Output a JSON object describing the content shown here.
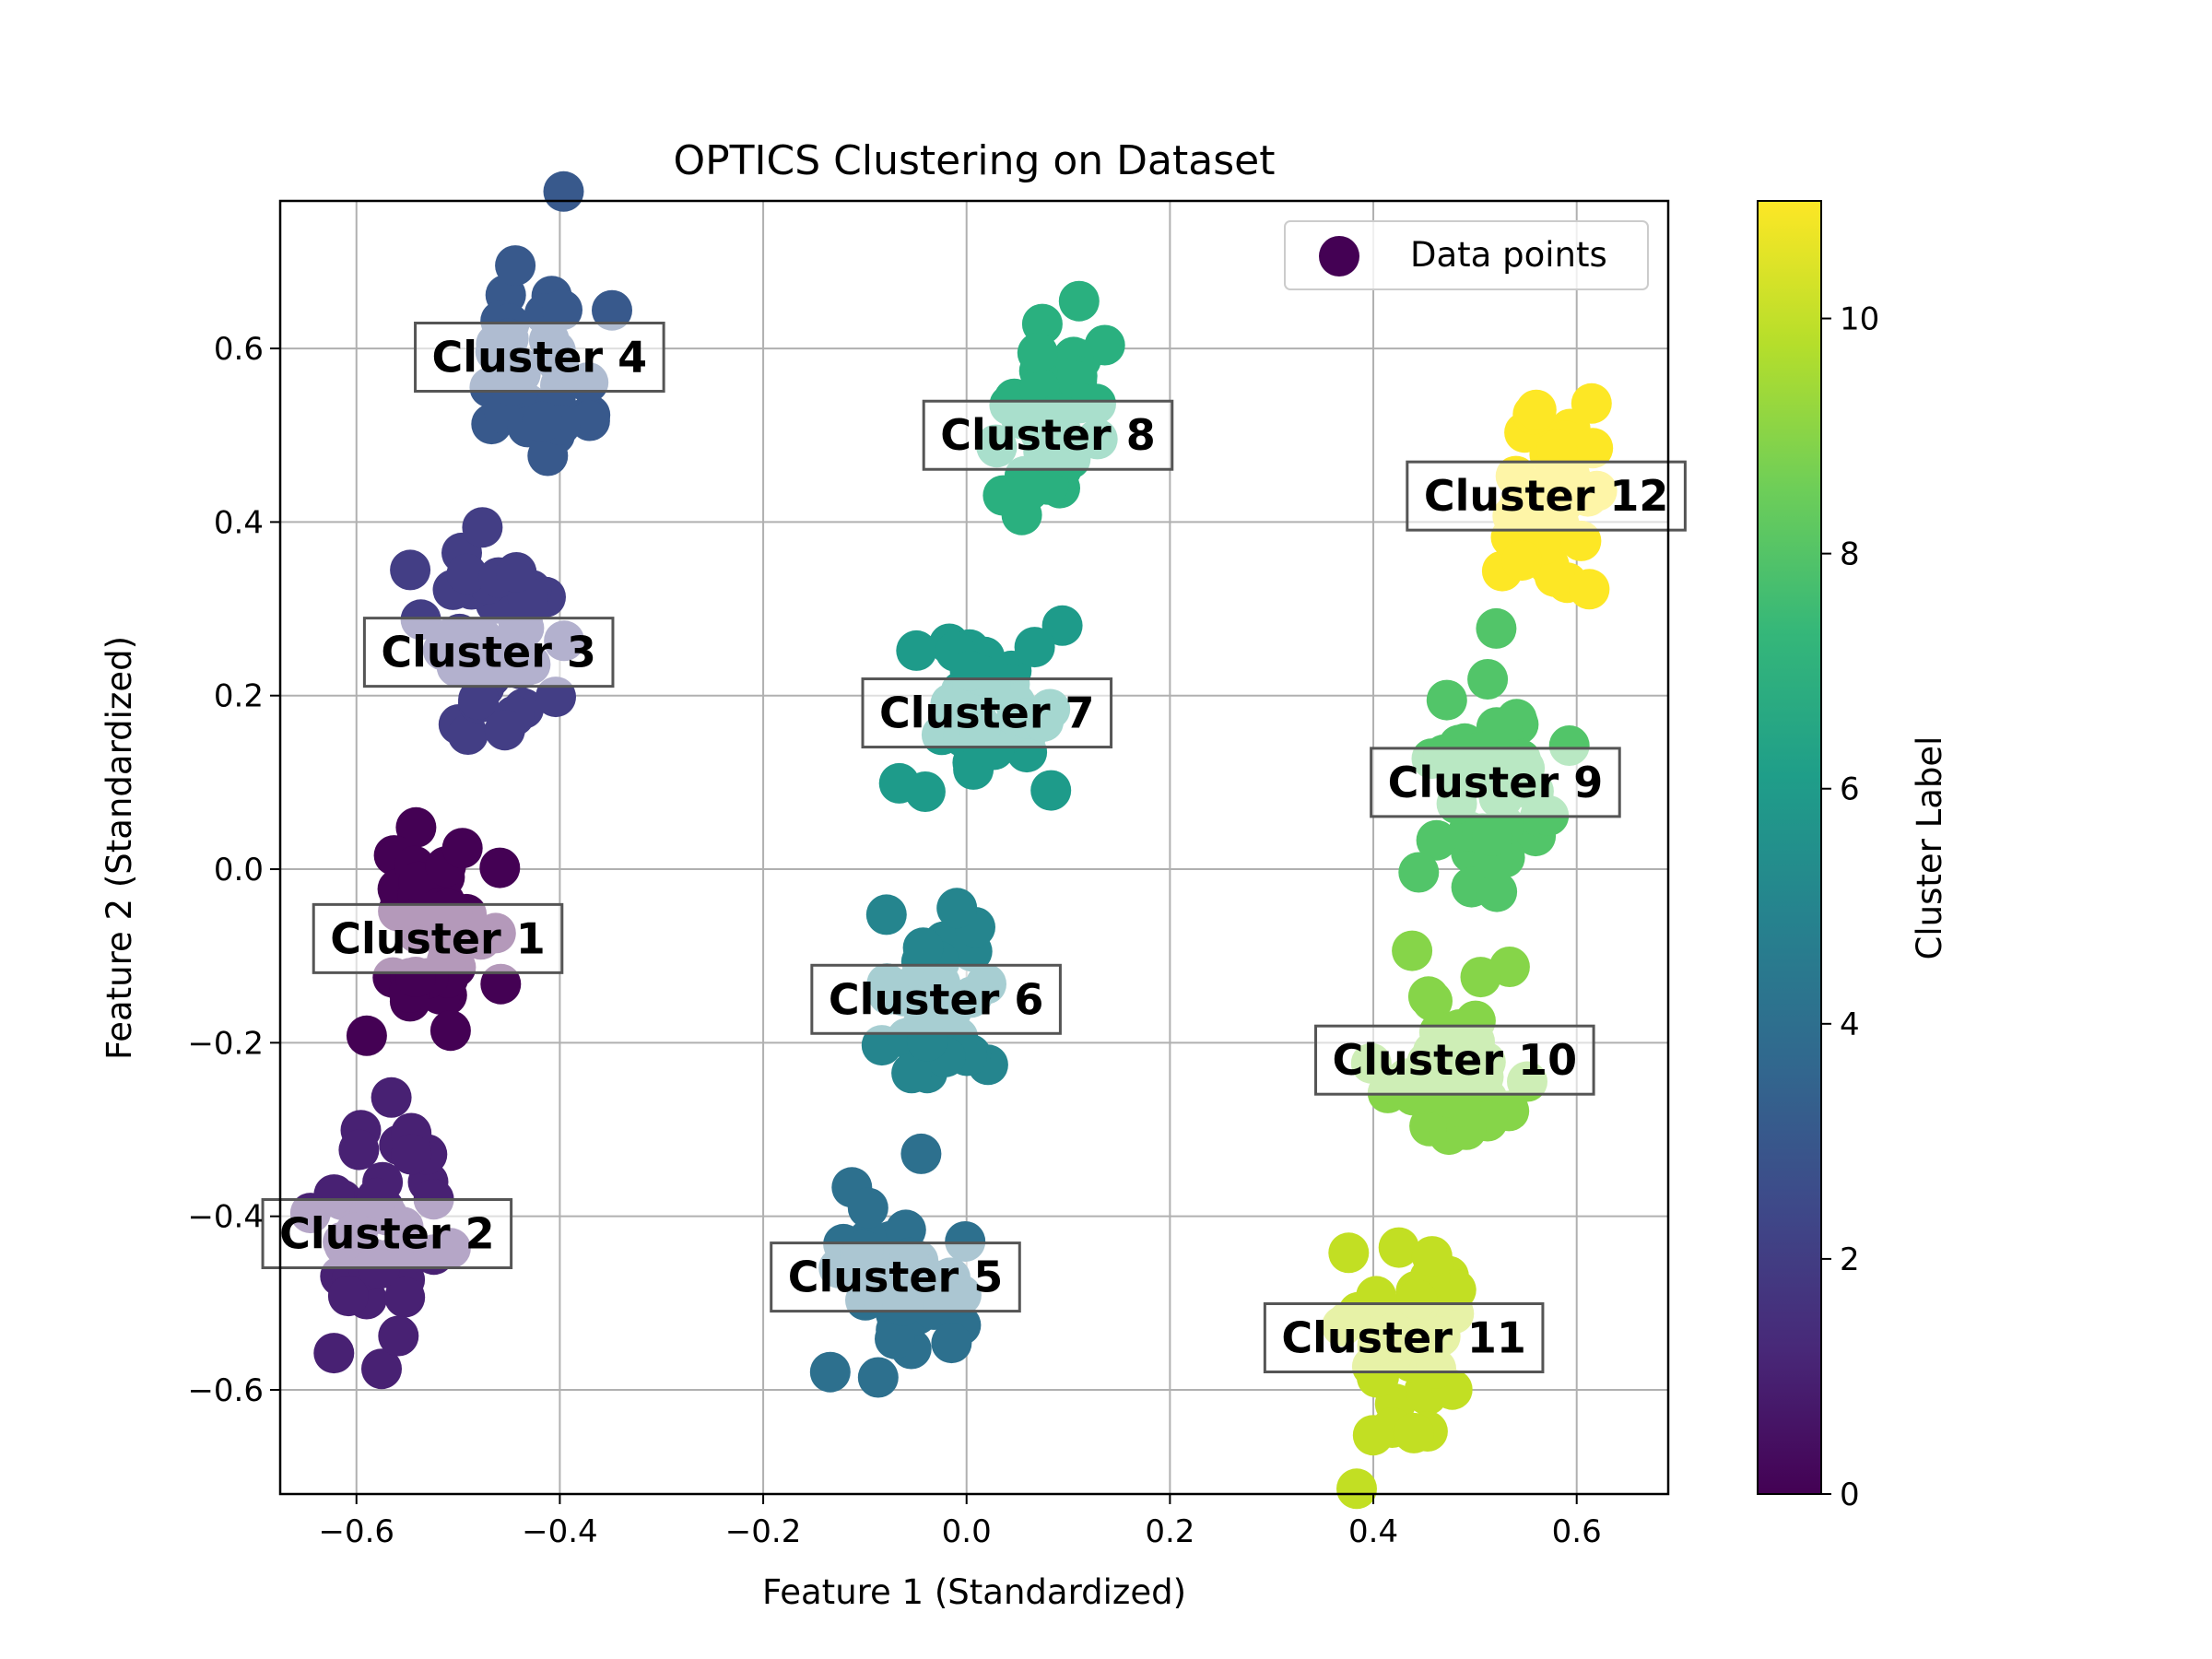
{
  "chart_data": {
    "type": "scatter",
    "title": "OPTICS Clustering on Dataset",
    "xlabel": "Feature 1 (Standardized)",
    "ylabel": "Feature 2 (Standardized)",
    "xlim": [
      -0.675,
      0.69
    ],
    "ylim": [
      -0.72,
      0.77
    ],
    "xticks": [
      -0.6,
      -0.4,
      -0.2,
      0.0,
      0.2,
      0.4,
      0.6
    ],
    "xtick_labels": [
      "−0.6",
      "−0.4",
      "−0.2",
      "0.0",
      "0.2",
      "0.4",
      "0.6"
    ],
    "yticks": [
      -0.6,
      -0.4,
      -0.2,
      0.0,
      0.2,
      0.4,
      0.6
    ],
    "ytick_labels": [
      "−0.6",
      "−0.4",
      "−0.2",
      "0.0",
      "0.2",
      "0.4",
      "0.6"
    ],
    "grid": true,
    "legend": {
      "position": "top-right",
      "entries": [
        {
          "label": "Data points",
          "color": "#440154"
        }
      ]
    },
    "colorbar": {
      "label": "Cluster Label",
      "range": [
        0,
        11
      ],
      "ticks": [
        0,
        2,
        4,
        6,
        8,
        10
      ],
      "tick_labels": [
        "0",
        "2",
        "4",
        "6",
        "8",
        "10"
      ],
      "colormap": "viridis",
      "stops": [
        "#440154",
        "#482878",
        "#3e4989",
        "#31688e",
        "#26828e",
        "#1f9e89",
        "#35b779",
        "#6ece58",
        "#b5de2b",
        "#fde725"
      ]
    },
    "clusters": [
      {
        "label": "Cluster 1",
        "cluster_id": 0,
        "center": [
          -0.52,
          -0.08
        ],
        "spread": [
          0.03,
          0.055
        ],
        "color": "#440154"
      },
      {
        "label": "Cluster 2",
        "cluster_id": 1,
        "center": [
          -0.57,
          -0.42
        ],
        "spread": [
          0.03,
          0.065
        ],
        "color": "#482173"
      },
      {
        "label": "Cluster 3",
        "cluster_id": 2,
        "center": [
          -0.47,
          0.25
        ],
        "spread": [
          0.03,
          0.06
        ],
        "color": "#433e85"
      },
      {
        "label": "Cluster 4",
        "cluster_id": 3,
        "center": [
          -0.42,
          0.59
        ],
        "spread": [
          0.03,
          0.06
        ],
        "color": "#38598c"
      },
      {
        "label": "Cluster 5",
        "cluster_id": 4,
        "center": [
          -0.07,
          -0.47
        ],
        "spread": [
          0.03,
          0.06
        ],
        "color": "#2d708e"
      },
      {
        "label": "Cluster 6",
        "cluster_id": 5,
        "center": [
          -0.03,
          -0.15
        ],
        "spread": [
          0.03,
          0.06
        ],
        "color": "#25858e"
      },
      {
        "label": "Cluster 7",
        "cluster_id": 6,
        "center": [
          0.02,
          0.18
        ],
        "spread": [
          0.03,
          0.06
        ],
        "color": "#1e9b8a"
      },
      {
        "label": "Cluster 8",
        "cluster_id": 7,
        "center": [
          0.08,
          0.5
        ],
        "spread": [
          0.03,
          0.06
        ],
        "color": "#2ab07f"
      },
      {
        "label": "Cluster 9",
        "cluster_id": 8,
        "center": [
          0.52,
          0.1
        ],
        "spread": [
          0.03,
          0.06
        ],
        "color": "#52c569"
      },
      {
        "label": "Cluster 10",
        "cluster_id": 9,
        "center": [
          0.48,
          -0.22
        ],
        "spread": [
          0.03,
          0.06
        ],
        "color": "#86d549"
      },
      {
        "label": "Cluster 11",
        "cluster_id": 10,
        "center": [
          0.43,
          -0.54
        ],
        "spread": [
          0.03,
          0.06
        ],
        "color": "#c2df23"
      },
      {
        "label": "Cluster 12",
        "cluster_id": 11,
        "center": [
          0.57,
          0.43
        ],
        "spread": [
          0.03,
          0.06
        ],
        "color": "#fde725"
      }
    ]
  }
}
